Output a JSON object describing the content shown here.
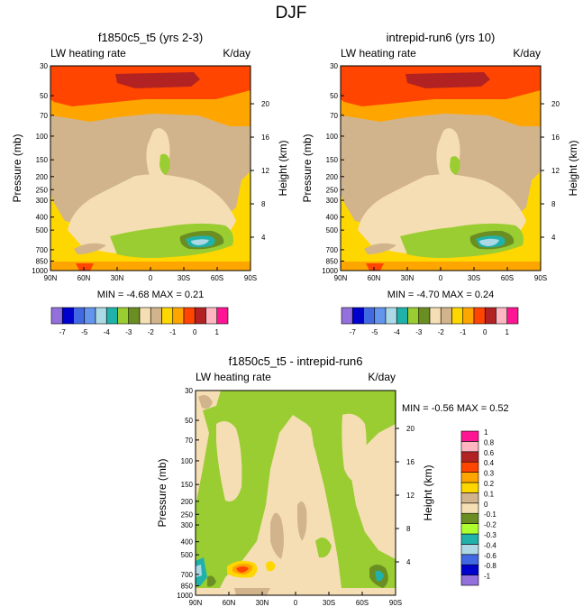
{
  "figure_title": "DJF",
  "chart_data": [
    {
      "type": "heatmap",
      "title": "f1850c5_t5 (yrs 2-3)",
      "left_label": "LW heating rate",
      "right_label": "K/day",
      "xlabel": "",
      "ylabel": "Pressure (mb)",
      "ylabel_right": "Height (km)",
      "x_ticks": [
        "90N",
        "60N",
        "30N",
        "0",
        "30S",
        "60S",
        "90S"
      ],
      "y_ticks": [
        30,
        50,
        70,
        100,
        150,
        200,
        250,
        300,
        400,
        500,
        700,
        850,
        1000
      ],
      "y_ticks_right": [
        20,
        16,
        12,
        8,
        4
      ],
      "stats": "MIN =  -4.68  MAX =   0.21",
      "min": -4.68,
      "max": 0.21
    },
    {
      "type": "heatmap",
      "title": "intrepid-run6 (yrs 10)",
      "left_label": "LW heating rate",
      "right_label": "K/day",
      "xlabel": "",
      "ylabel": "Pressure (mb)",
      "ylabel_right": "Height (km)",
      "x_ticks": [
        "90N",
        "60N",
        "30N",
        "0",
        "30S",
        "60S",
        "90S"
      ],
      "y_ticks": [
        30,
        50,
        70,
        100,
        150,
        200,
        250,
        300,
        400,
        500,
        700,
        850,
        1000
      ],
      "y_ticks_right": [
        20,
        16,
        12,
        8,
        4
      ],
      "stats": "MIN =  -4.70  MAX =   0.24",
      "min": -4.7,
      "max": 0.24
    },
    {
      "type": "heatmap",
      "title": "f1850c5_t5 - intrepid-run6",
      "left_label": "LW heating rate",
      "right_label": "K/day",
      "xlabel": "",
      "ylabel": "Pressure (mb)",
      "ylabel_right": "Height (km)",
      "x_ticks": [
        "90N",
        "60N",
        "30N",
        "0",
        "30S",
        "60S",
        "90S"
      ],
      "y_ticks": [
        30,
        50,
        70,
        100,
        150,
        200,
        250,
        300,
        400,
        500,
        700,
        850,
        1000
      ],
      "y_ticks_right": [
        20,
        16,
        12,
        8,
        4
      ],
      "stats": "MIN =  -0.56  MAX =   0.52",
      "min": -0.56,
      "max": 0.52
    }
  ],
  "colorbar_top": {
    "colors": [
      "#9370db",
      "#0000cd",
      "#4169e1",
      "#6495ed",
      "#add8e6",
      "#20b2aa",
      "#9acd32",
      "#6b8e23",
      "#f5deb3",
      "#d2b48c",
      "#ffd700",
      "#ffa500",
      "#ff4500",
      "#b22222",
      "#ffb6c1",
      "#ff1493"
    ],
    "labels": [
      "-7",
      "-5",
      "-4",
      "-3",
      "-2",
      "-1",
      "0",
      "1"
    ]
  },
  "colorbar_diff": {
    "colors": [
      "#9370db",
      "#0000cd",
      "#4169e1",
      "#add8e6",
      "#20b2aa",
      "#adff2f",
      "#6b8e23",
      "#f5deb3",
      "#d2b48c",
      "#ffd700",
      "#ffa500",
      "#ff4500",
      "#b22222",
      "#ffb6c1",
      "#ff1493"
    ],
    "labels": [
      "-1",
      "-0.8",
      "-0.6",
      "-0.4",
      "-0.3",
      "-0.2",
      "-0.1",
      "0",
      "0.1",
      "0.2",
      "0.3",
      "0.4",
      "0.6",
      "0.8",
      "1"
    ]
  }
}
